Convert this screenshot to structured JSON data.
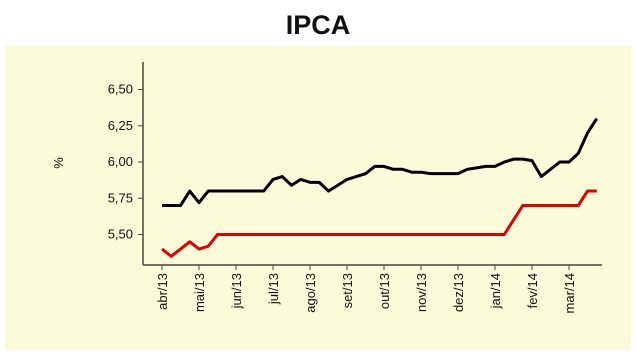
{
  "chart_data": {
    "type": "line",
    "title": "IPCA",
    "y_label": "%",
    "categories": [
      "abr/13",
      null,
      null,
      null,
      "mai/13",
      null,
      null,
      null,
      "jun/13",
      null,
      null,
      null,
      "jul/13",
      null,
      null,
      null,
      "ago/13",
      null,
      null,
      null,
      "set/13",
      null,
      null,
      null,
      "out/13",
      null,
      null,
      null,
      "nov/13",
      null,
      null,
      null,
      "dez/13",
      null,
      null,
      null,
      "jan/14",
      null,
      null,
      null,
      "fev/14",
      null,
      null,
      null,
      "mar/14",
      null,
      null,
      null
    ],
    "series": [
      {
        "color": "#000000",
        "values": [
          5.7,
          5.7,
          5.7,
          5.8,
          5.72,
          5.8,
          5.8,
          5.8,
          5.8,
          5.8,
          5.8,
          5.8,
          5.88,
          5.9,
          5.84,
          5.88,
          5.86,
          5.86,
          5.8,
          5.84,
          5.88,
          5.9,
          5.92,
          5.97,
          5.97,
          5.95,
          5.95,
          5.93,
          5.93,
          5.92,
          5.92,
          5.92,
          5.92,
          5.95,
          5.96,
          5.97,
          5.97,
          6.0,
          6.02,
          6.02,
          6.01,
          5.9,
          5.95,
          6.0,
          6.0,
          6.06,
          6.2,
          6.3
        ]
      },
      {
        "color": "#e00000",
        "values": [
          5.4,
          5.35,
          5.4,
          5.45,
          5.4,
          5.42,
          5.5,
          5.5,
          5.5,
          5.5,
          5.5,
          5.5,
          5.5,
          5.5,
          5.5,
          5.5,
          5.5,
          5.5,
          5.5,
          5.5,
          5.5,
          5.5,
          5.5,
          5.5,
          5.5,
          5.5,
          5.5,
          5.5,
          5.5,
          5.5,
          5.5,
          5.5,
          5.5,
          5.5,
          5.5,
          5.5,
          5.5,
          5.5,
          5.6,
          5.7,
          5.7,
          5.7,
          5.7,
          5.7,
          5.7,
          5.7,
          5.8,
          5.8
        ]
      }
    ],
    "ylim": [
      5.29,
      6.69
    ],
    "yticks": [
      {
        "value": 5.5,
        "label": "5,50"
      },
      {
        "value": 5.75,
        "label": "5,75"
      },
      {
        "value": 6.0,
        "label": "6,00"
      },
      {
        "value": 6.25,
        "label": "6,25"
      },
      {
        "value": 6.5,
        "label": "6,50"
      }
    ],
    "background": "#fcfbd9"
  }
}
